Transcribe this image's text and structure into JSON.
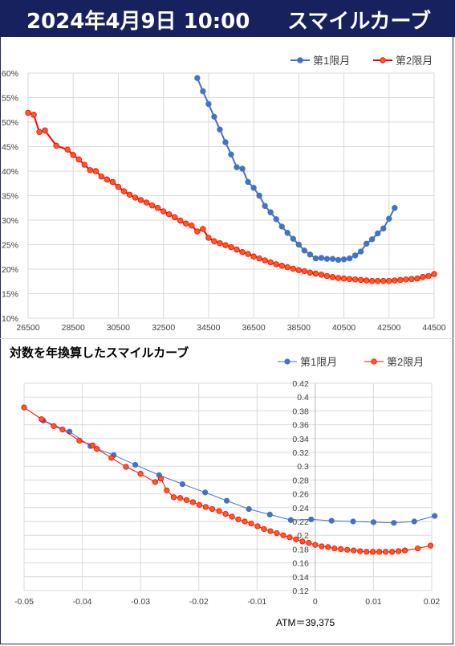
{
  "header": {
    "date_text": "2024年4月9日 10:00",
    "title": "スマイルカーブ"
  },
  "colors": {
    "header_bg": "#17215e",
    "series1": "#4472c4",
    "series2": "#ff0000",
    "series2_fill": "#ff5a1f",
    "grid": "#d9d9d9"
  },
  "chart_data": [
    {
      "type": "line",
      "title": "",
      "xlabel": "",
      "ylabel": "",
      "xlim": [
        26500,
        44500
      ],
      "ylim": [
        0.1,
        0.6
      ],
      "x_ticks": [
        "26500",
        "28500",
        "30500",
        "32500",
        "34500",
        "36500",
        "38500",
        "40500",
        "42500",
        "44500"
      ],
      "y_ticks": [
        "60%",
        "55%",
        "50%",
        "45%",
        "40%",
        "35%",
        "30%",
        "25%",
        "20%",
        "15%",
        "10%"
      ],
      "grid": "on",
      "legend_position": "top-right",
      "series": [
        {
          "name": "第1限月",
          "x": [
            34000,
            34250,
            34500,
            34750,
            35000,
            35250,
            35500,
            35750,
            36000,
            36250,
            36500,
            36750,
            37000,
            37250,
            37500,
            37750,
            38000,
            38250,
            38500,
            38750,
            39000,
            39250,
            39500,
            39750,
            40000,
            40250,
            40500,
            40750,
            41000,
            41250,
            41500,
            41750,
            42000,
            42250,
            42500,
            42750
          ],
          "y": [
            0.59,
            0.563,
            0.537,
            0.511,
            0.485,
            0.459,
            0.434,
            0.408,
            0.405,
            0.378,
            0.366,
            0.35,
            0.329,
            0.316,
            0.302,
            0.287,
            0.274,
            0.262,
            0.25,
            0.238,
            0.23,
            0.222,
            0.223,
            0.221,
            0.221,
            0.219,
            0.22,
            0.222,
            0.228,
            0.236,
            0.252,
            0.261,
            0.273,
            0.283,
            0.303,
            0.325
          ]
        },
        {
          "name": "第2限月",
          "x": [
            26500,
            26750,
            27000,
            27250,
            27750,
            28250,
            28500,
            28750,
            29000,
            29250,
            29500,
            29750,
            30000,
            30250,
            30500,
            30750,
            31000,
            31250,
            31500,
            31750,
            32000,
            32250,
            32500,
            32750,
            33000,
            33250,
            33500,
            33750,
            34000,
            34250,
            34500,
            34750,
            35000,
            35250,
            35500,
            35750,
            36000,
            36250,
            36500,
            36750,
            37000,
            37250,
            37500,
            37750,
            38000,
            38250,
            38500,
            38750,
            39000,
            39250,
            39500,
            39750,
            40000,
            40250,
            40500,
            40750,
            41000,
            41250,
            41500,
            41750,
            42000,
            42250,
            42500,
            42750,
            43000,
            43250,
            43500,
            43750,
            44000,
            44250,
            44500
          ],
          "y": [
            0.519,
            0.515,
            0.48,
            0.483,
            0.452,
            0.444,
            0.433,
            0.424,
            0.413,
            0.402,
            0.4,
            0.389,
            0.383,
            0.378,
            0.368,
            0.359,
            0.352,
            0.346,
            0.341,
            0.336,
            0.33,
            0.325,
            0.318,
            0.312,
            0.306,
            0.299,
            0.293,
            0.289,
            0.277,
            0.282,
            0.264,
            0.257,
            0.253,
            0.249,
            0.245,
            0.24,
            0.235,
            0.231,
            0.226,
            0.222,
            0.218,
            0.214,
            0.21,
            0.207,
            0.204,
            0.201,
            0.198,
            0.196,
            0.193,
            0.191,
            0.189,
            0.186,
            0.184,
            0.182,
            0.181,
            0.18,
            0.179,
            0.178,
            0.177,
            0.176,
            0.176,
            0.176,
            0.176,
            0.177,
            0.178,
            0.179,
            0.18,
            0.181,
            0.184,
            0.186,
            0.19
          ]
        }
      ]
    },
    {
      "type": "line",
      "title": "対数を年換算したスマイルカーブ",
      "xlabel": "",
      "ylabel": "",
      "annotation": "ATM＝39,375",
      "xlim": [
        -0.05,
        0.02
      ],
      "ylim": [
        0.12,
        0.42
      ],
      "x_ticks": [
        "-0.05",
        "-0.04",
        "-0.03",
        "-0.02",
        "-0.01",
        "0",
        "0.01",
        "0.02"
      ],
      "y_ticks": [
        "0.42",
        "0.4",
        "0.38",
        "0.36",
        "0.34",
        "0.32",
        "0.3",
        "0.28",
        "0.26",
        "0.24",
        "0.22",
        "0.2",
        "0.18",
        "0.16",
        "0.14",
        "0.12"
      ],
      "grid": "on",
      "legend_position": "top-right",
      "series": [
        {
          "name": "第1限月",
          "x": [
            -0.0467,
            -0.0422,
            -0.0386,
            -0.0346,
            -0.0309,
            -0.0268,
            -0.0228,
            -0.0189,
            -0.0152,
            -0.0114,
            -0.0078,
            -0.0042,
            -0.0007,
            0.0028,
            0.0065,
            0.01,
            0.0135,
            0.017,
            0.0205
          ],
          "y": [
            0.366,
            0.35,
            0.329,
            0.316,
            0.302,
            0.287,
            0.274,
            0.262,
            0.25,
            0.238,
            0.23,
            0.222,
            0.223,
            0.221,
            0.22,
            0.219,
            0.218,
            0.22,
            0.228
          ]
        },
        {
          "name": "第2限月",
          "x": [
            -0.05,
            -0.047,
            -0.0449,
            -0.0434,
            -0.0405,
            -0.0382,
            -0.0375,
            -0.035,
            -0.0325,
            -0.03,
            -0.0275,
            -0.0265,
            -0.0255,
            -0.0243,
            -0.0232,
            -0.0221,
            -0.021,
            -0.0199,
            -0.0188,
            -0.0177,
            -0.0165,
            -0.0154,
            -0.0143,
            -0.0132,
            -0.0121,
            -0.011,
            -0.0099,
            -0.0088,
            -0.0077,
            -0.0066,
            -0.0055,
            -0.0044,
            -0.0033,
            -0.0022,
            -0.0011,
            0.0,
            0.0011,
            0.0022,
            0.0033,
            0.0044,
            0.0055,
            0.0066,
            0.0077,
            0.0088,
            0.0099,
            0.011,
            0.0121,
            0.0132,
            0.0143,
            0.0154,
            0.0176,
            0.0198
          ],
          "y": [
            0.385,
            0.368,
            0.358,
            0.353,
            0.337,
            0.33,
            0.325,
            0.312,
            0.299,
            0.289,
            0.277,
            0.282,
            0.265,
            0.255,
            0.254,
            0.251,
            0.248,
            0.244,
            0.241,
            0.238,
            0.235,
            0.231,
            0.227,
            0.223,
            0.22,
            0.217,
            0.213,
            0.209,
            0.206,
            0.203,
            0.2,
            0.197,
            0.194,
            0.191,
            0.189,
            0.186,
            0.184,
            0.183,
            0.181,
            0.18,
            0.179,
            0.178,
            0.177,
            0.176,
            0.176,
            0.176,
            0.176,
            0.176,
            0.177,
            0.178,
            0.181,
            0.185
          ]
        }
      ]
    }
  ]
}
